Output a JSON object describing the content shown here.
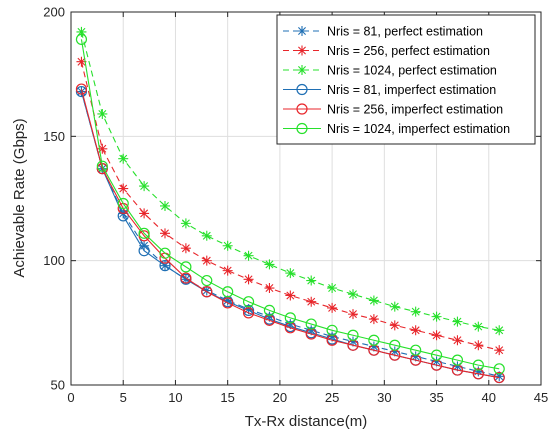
{
  "chart_data": {
    "type": "line",
    "xlabel": "Tx-Rx distance(m)",
    "ylabel": "Achievable Rate (Gbps)",
    "xlim": [
      0,
      45
    ],
    "ylim": [
      50,
      200
    ],
    "xticks": [
      0,
      5,
      10,
      15,
      20,
      25,
      30,
      35,
      40,
      45
    ],
    "yticks": [
      50,
      100,
      150,
      200
    ],
    "grid": true,
    "legend_position": "top-right",
    "x": [
      1,
      3,
      5,
      7,
      9,
      11,
      13,
      15,
      17,
      19,
      21,
      23,
      25,
      27,
      29,
      31,
      33,
      35,
      37,
      39,
      41
    ],
    "series": [
      {
        "name": "Nris = 81, perfect estimation",
        "color": "#1f6fb4",
        "line": "dashed",
        "marker": "star",
        "values": [
          168,
          137,
          119,
          106,
          98,
          92.5,
          88,
          84,
          80.5,
          77.5,
          74.5,
          72,
          69.5,
          67.5,
          65.5,
          63.5,
          61.5,
          59.5,
          57.5,
          55.5,
          53.5
        ]
      },
      {
        "name": "Nris = 256, perfect estimation",
        "color": "#e8262b",
        "line": "dashed",
        "marker": "star",
        "values": [
          180,
          145,
          129,
          119,
          111,
          105,
          100,
          96,
          92.5,
          89,
          86,
          83.5,
          81,
          78.5,
          76.5,
          74,
          72,
          70,
          68,
          66,
          64
        ]
      },
      {
        "name": "Nris = 1024, perfect estimation",
        "color": "#27e02c",
        "line": "dashed",
        "marker": "star",
        "values": [
          192,
          159,
          141,
          130,
          122,
          115,
          110,
          106,
          102,
          98.5,
          95,
          92,
          89,
          86.5,
          84,
          81.5,
          79.5,
          77.5,
          75.5,
          73.5,
          72
        ]
      },
      {
        "name": "Nris = 81, imperfect estimation",
        "color": "#1f6fb4",
        "line": "solid",
        "marker": "circle",
        "values": [
          168,
          137,
          118,
          104,
          98,
          92.5,
          87.5,
          83.5,
          80,
          76.5,
          73.5,
          71,
          68.5,
          66,
          64,
          62,
          60,
          58,
          56,
          54.5,
          53
        ]
      },
      {
        "name": "Nris = 256, imperfect estimation",
        "color": "#e8262b",
        "line": "solid",
        "marker": "circle",
        "values": [
          169,
          137,
          121,
          110,
          101,
          93,
          87.5,
          83,
          79,
          76,
          73,
          70.5,
          68,
          66,
          64,
          62,
          60,
          58,
          56,
          54.5,
          53
        ]
      },
      {
        "name": "Nris = 1024, imperfect estimation",
        "color": "#27e02c",
        "line": "solid",
        "marker": "circle",
        "values": [
          189,
          138,
          123,
          111,
          103,
          97.5,
          92,
          87.5,
          83.5,
          80,
          77,
          74.5,
          72,
          70,
          68,
          66,
          64,
          62,
          60,
          58,
          56.5
        ]
      }
    ]
  }
}
